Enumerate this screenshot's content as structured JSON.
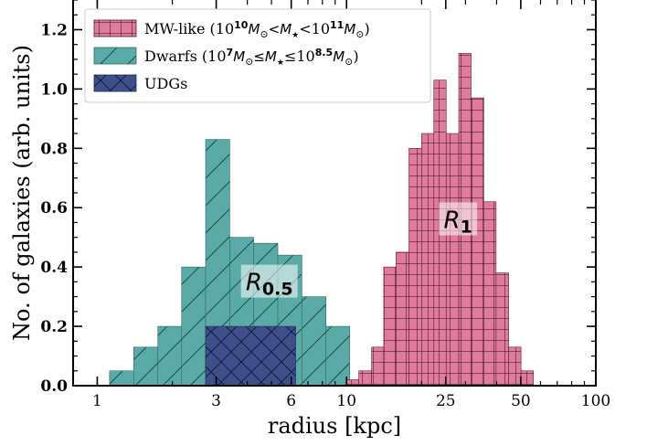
{
  "chart_data": {
    "type": "bar",
    "xlabel": "radius [kpc]",
    "ylabel": "No. of galaxies (arb. units)",
    "xscale": "log",
    "xlim": [
      0.8,
      100
    ],
    "ylim": [
      0,
      1.3
    ],
    "xticks": [
      1,
      3,
      6,
      10,
      25,
      50,
      100
    ],
    "yticks": [
      0.0,
      0.2,
      0.4,
      0.6,
      0.8,
      1.0,
      1.2
    ],
    "ytick_labels": [
      "0.0",
      "0.2",
      "0.4",
      "0.6",
      "0.8",
      "1.0",
      "1.2"
    ],
    "legend_position": "top-left",
    "series": [
      {
        "key": "dwarfs",
        "name": "Dwarfs (10^7 M_sun ≤ M_star ≤ 10^8.5 M_sun)",
        "color": "#5aaba7",
        "hatch": "diagonal",
        "bin_edges": [
          1.12,
          1.4,
          1.75,
          2.18,
          2.72,
          3.4,
          4.24,
          5.3,
          6.62,
          8.27,
          10.3
        ],
        "values": [
          0.05,
          0.13,
          0.2,
          0.4,
          0.83,
          0.5,
          0.48,
          0.44,
          0.3,
          0.2
        ]
      },
      {
        "key": "mw",
        "name": "MW-like (10^10 M_sun < M_star < 10^11 M_sun)",
        "color": "#e07b9e",
        "hatch": "grid",
        "bin_edges": [
          10.0,
          11.2,
          12.6,
          14.1,
          15.8,
          17.8,
          20.0,
          22.4,
          25.1,
          28.2,
          31.6,
          35.5,
          39.8,
          44.7,
          50.1,
          56.2
        ],
        "values": [
          0.02,
          0.05,
          0.13,
          0.4,
          0.45,
          0.8,
          0.85,
          1.03,
          0.85,
          1.12,
          0.97,
          0.62,
          0.38,
          0.13,
          0.05
        ]
      },
      {
        "key": "udgs",
        "name": "UDGs",
        "color": "#3e4f8c",
        "hatch": "crosshatch",
        "bin_edges": [
          2.72,
          6.25
        ],
        "values": [
          0.2
        ]
      }
    ],
    "legend": [
      {
        "key": "mw",
        "prefix": "MW-like (10",
        "sup1": "10",
        "mid1": "M",
        "sub1": "⊙",
        "mid2": "<M",
        "sub2": "★",
        "mid3": "<10",
        "sup2": "11",
        "mid4": "M",
        "sub3": "⊙",
        "suffix": ")"
      },
      {
        "key": "dwarfs",
        "prefix": "Dwarfs (10",
        "sup1": "7",
        "mid1": "M",
        "sub1": "⊙",
        "mid2": "≤M",
        "sub2": "★",
        "mid3": "≤10",
        "sup2": "8.5",
        "mid4": "M",
        "sub3": "⊙",
        "suffix": ")"
      },
      {
        "key": "udgs",
        "prefix": "UDGs"
      }
    ],
    "annotations": [
      {
        "key": "r05",
        "base": "R",
        "sub": "0.5",
        "x": 4.9,
        "y": 0.34
      },
      {
        "key": "r1",
        "base": "R",
        "sub": "1",
        "x": 28.0,
        "y": 0.55
      }
    ]
  }
}
